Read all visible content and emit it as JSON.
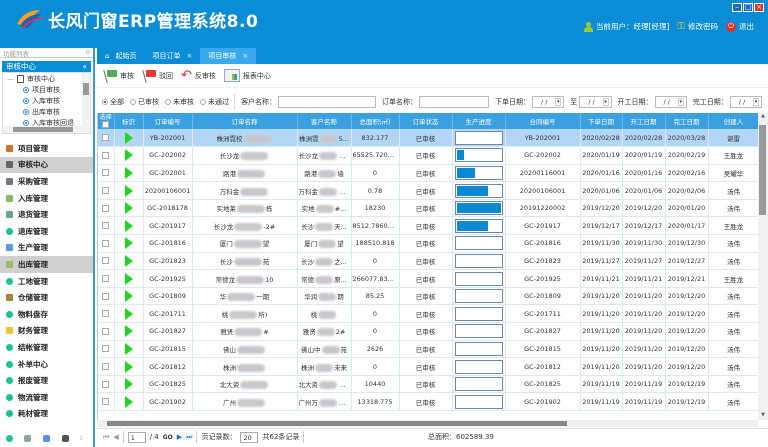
{
  "header": {
    "title": "长风门窗ERP管理系统8.0",
    "user_label": "当前用户：经理[经理]",
    "change_password": "修改密码",
    "logout": "退出",
    "brand_color": "#0b8dd6"
  },
  "sidebar": {
    "panel_title": "功能列表",
    "panel_pin": "0",
    "group_title": "审核中心",
    "collapse": "«",
    "tree_root": "审核中心",
    "tree_children": [
      "项目审核",
      "入库审核",
      "出库审核",
      "入库审核回退"
    ],
    "menu": [
      {
        "label": "项目管理",
        "active": false
      },
      {
        "label": "审核中心",
        "active": true
      },
      {
        "label": "采购管理",
        "active": false
      },
      {
        "label": "入库管理",
        "active": false
      },
      {
        "label": "退货管理",
        "active": false
      },
      {
        "label": "退库管理",
        "active": false
      },
      {
        "label": "生产管理",
        "active": false
      },
      {
        "label": "出库管理",
        "active": true
      },
      {
        "label": "工地管理",
        "active": false
      },
      {
        "label": "仓储管理",
        "active": false
      },
      {
        "label": "物料盘存",
        "active": false
      },
      {
        "label": "财务管理",
        "active": false
      },
      {
        "label": "结帐管理",
        "active": false
      },
      {
        "label": "补单中心",
        "active": false
      },
      {
        "label": "报废管理",
        "active": false
      },
      {
        "label": "物流管理",
        "active": false
      },
      {
        "label": "耗材管理",
        "active": false
      }
    ]
  },
  "tabs": [
    {
      "label": "起始页",
      "closable": false,
      "active": false
    },
    {
      "label": "项目订单",
      "closable": true,
      "active": false
    },
    {
      "label": "项目审核",
      "closable": true,
      "active": true
    }
  ],
  "toolbar": {
    "approve": "审核",
    "reject": "驳回",
    "unapprove": "反审核",
    "report": "报表中心"
  },
  "filter": {
    "radios": [
      {
        "label": "全部",
        "checked": true
      },
      {
        "label": "已审核",
        "checked": false
      },
      {
        "label": "未审核",
        "checked": false
      },
      {
        "label": "未通过",
        "checked": false
      }
    ],
    "customer_label": "客户名称：",
    "order_label": "订单名称：",
    "order_date_label": "下单日期：",
    "to_label": "至",
    "start_date_label": "开工日期：",
    "finish_date_label": "完工日期：",
    "date_placeholder": "/   /"
  },
  "table": {
    "columns": [
      "选择",
      "标识",
      "订单编号",
      "订单名称",
      "客户名称",
      "总面积(㎡)",
      "订单状态",
      "生产进度",
      "合同编号",
      "下单日期",
      "开工日期",
      "完工日期",
      "创建人"
    ],
    "rows": [
      {
        "no": "YB-202001",
        "name": [
          "株洲霓校",
          ""
        ],
        "cust": [
          "株洲霓",
          "5..."
        ],
        "area": "832.177",
        "status": "已审核",
        "progress": 0,
        "contract": "YB-202001",
        "od": "2020/02/28",
        "sd": "2020/02/28",
        "fd": "2020/03/28",
        "creator": "谌雷",
        "selected": true
      },
      {
        "no": "GC-202002",
        "name": [
          "长沙龙",
          ""
        ],
        "cust": [
          "长沙龙",
          "乳..."
        ],
        "area": "65525.7200...",
        "status": "已审核",
        "progress": 20,
        "contract": "GC-202002",
        "od": "2020/01/19",
        "sd": "2020/01/19",
        "fd": "2020/02/19",
        "creator": "王胜龙"
      },
      {
        "no": "GC-202001",
        "name": [
          "路港",
          ""
        ],
        "cust": [
          "路港",
          "墙"
        ],
        "area": "0",
        "status": "已审核",
        "progress": 45,
        "contract": "20200116001",
        "od": "2020/01/16",
        "sd": "2020/01/16",
        "fd": "2020/02/16",
        "creator": "吴耀华"
      },
      {
        "no": "20200106001",
        "name": [
          "万科金",
          ""
        ],
        "cust": [
          "万科金",
          "一期"
        ],
        "area": "0.78",
        "status": "已审核",
        "progress": 72,
        "contract": "20200106001",
        "od": "2020/01/06",
        "sd": "2020/01/06",
        "fd": "2020/02/06",
        "creator": "汤伟"
      },
      {
        "no": "GC-2018178",
        "name": [
          "实地莱",
          "栋"
        ],
        "cust": [
          "实地",
          "#..."
        ],
        "area": "18230",
        "status": "已审核",
        "progress": 100,
        "contract": "20191220002",
        "od": "2019/12/20",
        "sd": "2019/12/20",
        "fd": "2020/01/20",
        "creator": "汤伟"
      },
      {
        "no": "GC-201917",
        "name": [
          "长沙龙",
          "-2#"
        ],
        "cust": [
          "长沙",
          "天..."
        ],
        "area": "8512.78600...",
        "status": "已审核",
        "progress": 72,
        "contract": "GC-201917",
        "od": "2019/12/17",
        "sd": "2019/12/17",
        "fd": "2020/01/17",
        "creator": "王胜龙"
      },
      {
        "no": "GC-201816",
        "name": [
          "厦门",
          "望"
        ],
        "cust": [
          "厦门",
          "望"
        ],
        "area": "188510.818",
        "status": "已审核",
        "progress": 0,
        "contract": "GC-201816",
        "od": "2019/11/30",
        "sd": "2019/11/30",
        "fd": "2019/12/30",
        "creator": "汤伟"
      },
      {
        "no": "GC-201823",
        "name": [
          "长沙",
          "苑"
        ],
        "cust": [
          "长沙",
          "之..."
        ],
        "area": "0",
        "status": "已审核",
        "progress": 0,
        "contract": "GC-201823",
        "od": "2019/11/27",
        "sd": "2019/11/27",
        "fd": "2019/12/27",
        "creator": "汤伟"
      },
      {
        "no": "GC-201925",
        "name": [
          "常德龙",
          "10"
        ],
        "cust": [
          "常德",
          "原..."
        ],
        "area": "266077.835...",
        "status": "已审核",
        "progress": 0,
        "contract": "GC-201925",
        "od": "2019/11/21",
        "sd": "2019/11/21",
        "fd": "2019/12/21",
        "creator": "王胜龙"
      },
      {
        "no": "GC-201809",
        "name": [
          "华",
          "一期"
        ],
        "cust": [
          "华润",
          "期"
        ],
        "area": "85.25",
        "status": "已审核",
        "progress": 0,
        "contract": "GC-201809",
        "od": "2019/11/20",
        "sd": "2019/11/20",
        "fd": "2019/12/20",
        "creator": "汤伟"
      },
      {
        "no": "GC-201711",
        "name": [
          "桃",
          "所)"
        ],
        "cust": [
          "桃",
          ""
        ],
        "area": "0",
        "status": "已审核",
        "progress": 0,
        "contract": "GC-201711",
        "od": "2019/11/20",
        "sd": "2019/11/20",
        "fd": "2019/12/20",
        "creator": "汤伟"
      },
      {
        "no": "GC-201827",
        "name": [
          "雅贤",
          "#"
        ],
        "cust": [
          "雅贤",
          "2#"
        ],
        "area": "0",
        "status": "已审核",
        "progress": 0,
        "contract": "GC-201827",
        "od": "2019/11/20",
        "sd": "2019/11/20",
        "fd": "2019/12/20",
        "creator": "汤伟"
      },
      {
        "no": "GC-201815",
        "name": [
          "佛山",
          ""
        ],
        "cust": [
          "佛山中",
          "苑"
        ],
        "area": "2626",
        "status": "已审核",
        "progress": 0,
        "contract": "GC-201815",
        "od": "2019/11/20",
        "sd": "2019/11/20",
        "fd": "2019/12/20",
        "creator": "汤伟"
      },
      {
        "no": "GC-201812",
        "name": [
          "株洲",
          ""
        ],
        "cust": [
          "株洲",
          "未来"
        ],
        "area": "0",
        "status": "已审核",
        "progress": 0,
        "contract": "GC-201812",
        "od": "2019/11/20",
        "sd": "2019/11/20",
        "fd": "2019/12/20",
        "creator": "汤伟"
      },
      {
        "no": "GC-201825",
        "name": [
          "北大资",
          ""
        ],
        "cust": [
          "北大资",
          "天..."
        ],
        "area": "10440",
        "status": "已审核",
        "progress": 0,
        "contract": "GC-201825",
        "od": "2019/11/19",
        "sd": "2019/11/19",
        "fd": "2019/12/19",
        "creator": "汤伟"
      },
      {
        "no": "GC-201902",
        "name": [
          "广州",
          ""
        ],
        "cust": [
          "广州万",
          "森林"
        ],
        "area": "13318.775",
        "status": "已审核",
        "progress": 0,
        "contract": "GC-201902",
        "od": "2019/11/19",
        "sd": "2019/11/19",
        "fd": "2019/12/19",
        "creator": "汤伟"
      }
    ]
  },
  "pager": {
    "current_page": "1",
    "total_pages": "/ 4",
    "go": "GO",
    "page_size_label": "页记录数：",
    "page_size": "20",
    "total_records": "共62条记录",
    "total_area": "总面积：602589.39"
  }
}
